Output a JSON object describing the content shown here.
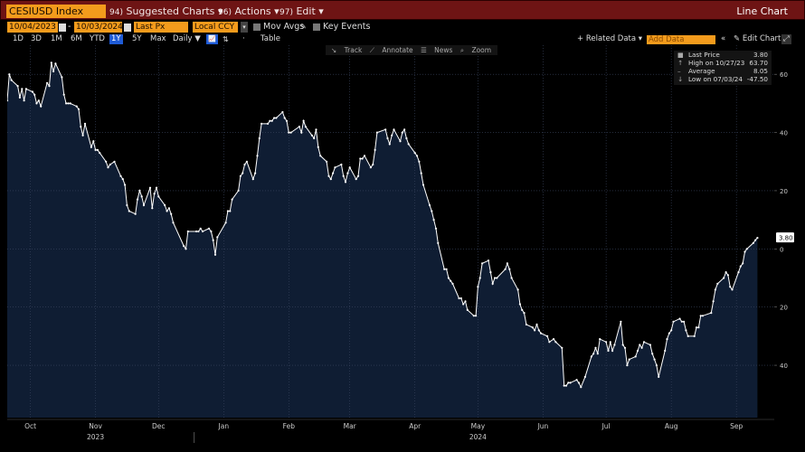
{
  "toolbar": {
    "ticker": "CESIUSD Index",
    "menus": [
      {
        "num": "94)",
        "label": "Suggested Charts",
        "arrow": "▾"
      },
      {
        "num": "96)",
        "label": "Actions",
        "arrow": "▾"
      },
      {
        "num": "97)",
        "label": "Edit",
        "arrow": "▾"
      }
    ],
    "chart_type": "Line Chart"
  },
  "params": {
    "start_date": "10/04/2023",
    "end_date": "10/03/2024",
    "field": "Last Px",
    "currency": "Local CCY",
    "mov_avgs": "Mov Avgs",
    "key_events": "Key Events"
  },
  "ranges": {
    "items": [
      "1D",
      "3D",
      "1M",
      "6M",
      "YTD",
      "1Y",
      "5Y",
      "Max"
    ],
    "selected": "1Y",
    "periodicity": "Daily ▼",
    "table": "Table",
    "related": "+ Related Data ▾",
    "add_data": "Add Data",
    "edit_chart": "Edit Chart"
  },
  "tools": [
    "Track",
    "Annotate",
    "News",
    "Zoom"
  ],
  "legend": [
    {
      "label": "Last Price",
      "value": "3.80"
    },
    {
      "label": "High on 10/27/23",
      "value": "63.70"
    },
    {
      "label": "Average",
      "value": "8.05"
    },
    {
      "label": "Low on 07/03/24",
      "value": "-47.50"
    }
  ],
  "colors": {
    "title_bar": "#6e1414",
    "input_fill": "#f39b1c",
    "area_fill": "#0f1d33",
    "line": "#ffffff",
    "selected_range": "#1f5bd6"
  },
  "chart_data": {
    "type": "area",
    "ylim": [
      -58,
      70
    ],
    "yticks": [
      60,
      40,
      20,
      0,
      -20,
      -40
    ],
    "ytick_labels": [
      "60",
      "40",
      "20",
      "0",
      "20",
      "40"
    ],
    "month_labels": [
      "Oct",
      "Nov",
      "Dec",
      "Jan",
      "Feb",
      "Mar",
      "Apr",
      "May",
      "Jun",
      "Jul",
      "Aug",
      "Sep"
    ],
    "month_dates": [
      "2023-10-15",
      "2023-11-15",
      "2023-12-15",
      "2024-01-15",
      "2024-02-15",
      "2024-03-15",
      "2024-04-15",
      "2024-05-15",
      "2024-06-15",
      "2024-07-15",
      "2024-08-15",
      "2024-09-15"
    ],
    "year_labels": [
      {
        "label": "2023",
        "date": "2023-11-15"
      },
      {
        "label": "2024",
        "date": "2024-05-15"
      }
    ],
    "last_value_label": "3.80",
    "series": [
      {
        "values": [
          [
            "2023-10-04",
            51
          ],
          [
            "2023-10-05",
            60
          ],
          [
            "2023-10-06",
            58
          ],
          [
            "2023-10-09",
            56
          ],
          [
            "2023-10-10",
            52
          ],
          [
            "2023-10-11",
            55
          ],
          [
            "2023-10-12",
            51
          ],
          [
            "2023-10-13",
            55
          ],
          [
            "2023-10-16",
            54
          ],
          [
            "2023-10-17",
            53
          ],
          [
            "2023-10-18",
            50
          ],
          [
            "2023-10-19",
            51
          ],
          [
            "2023-10-20",
            49
          ],
          [
            "2023-10-23",
            57
          ],
          [
            "2023-10-24",
            56
          ],
          [
            "2023-10-25",
            64
          ],
          [
            "2023-10-26",
            61
          ],
          [
            "2023-10-27",
            63.7
          ],
          [
            "2023-10-30",
            59
          ],
          [
            "2023-10-31",
            53
          ],
          [
            "2023-11-01",
            50
          ],
          [
            "2023-11-02",
            50
          ],
          [
            "2023-11-03",
            50
          ],
          [
            "2023-11-06",
            49
          ],
          [
            "2023-11-07",
            48
          ],
          [
            "2023-11-08",
            42
          ],
          [
            "2023-11-09",
            39
          ],
          [
            "2023-11-10",
            43
          ],
          [
            "2023-11-13",
            35
          ],
          [
            "2023-11-14",
            37
          ],
          [
            "2023-11-15",
            34
          ],
          [
            "2023-11-16",
            34
          ],
          [
            "2023-11-17",
            33
          ],
          [
            "2023-11-20",
            30
          ],
          [
            "2023-11-21",
            28
          ],
          [
            "2023-11-22",
            29
          ],
          [
            "2023-11-24",
            30
          ],
          [
            "2023-11-27",
            25
          ],
          [
            "2023-11-28",
            24
          ],
          [
            "2023-11-29",
            22
          ],
          [
            "2023-11-30",
            15
          ],
          [
            "2023-12-01",
            13
          ],
          [
            "2023-12-04",
            12
          ],
          [
            "2023-12-05",
            17
          ],
          [
            "2023-12-06",
            20
          ],
          [
            "2023-12-07",
            18
          ],
          [
            "2023-12-08",
            15
          ],
          [
            "2023-12-11",
            21
          ],
          [
            "2023-12-12",
            14
          ],
          [
            "2023-12-13",
            19
          ],
          [
            "2023-12-14",
            21
          ],
          [
            "2023-12-15",
            18
          ],
          [
            "2023-12-18",
            15
          ],
          [
            "2023-12-19",
            13
          ],
          [
            "2023-12-20",
            14
          ],
          [
            "2023-12-21",
            12
          ],
          [
            "2023-12-22",
            9
          ],
          [
            "2023-12-27",
            1
          ],
          [
            "2023-12-28",
            0
          ],
          [
            "2023-12-29",
            6
          ],
          [
            "2024-01-02",
            6
          ],
          [
            "2024-01-03",
            6
          ],
          [
            "2024-01-04",
            7
          ],
          [
            "2024-01-05",
            6
          ],
          [
            "2024-01-08",
            7
          ],
          [
            "2024-01-09",
            6
          ],
          [
            "2024-01-10",
            3
          ],
          [
            "2024-01-11",
            -2
          ],
          [
            "2024-01-12",
            4
          ],
          [
            "2024-01-16",
            9
          ],
          [
            "2024-01-17",
            13
          ],
          [
            "2024-01-18",
            13
          ],
          [
            "2024-01-19",
            17
          ],
          [
            "2024-01-22",
            20
          ],
          [
            "2024-01-23",
            25
          ],
          [
            "2024-01-24",
            26
          ],
          [
            "2024-01-25",
            29
          ],
          [
            "2024-01-26",
            30
          ],
          [
            "2024-01-29",
            24
          ],
          [
            "2024-01-30",
            26
          ],
          [
            "2024-01-31",
            32
          ],
          [
            "2024-02-01",
            38
          ],
          [
            "2024-02-02",
            43
          ],
          [
            "2024-02-05",
            43
          ],
          [
            "2024-02-06",
            44
          ],
          [
            "2024-02-07",
            44
          ],
          [
            "2024-02-08",
            45
          ],
          [
            "2024-02-09",
            45
          ],
          [
            "2024-02-12",
            47
          ],
          [
            "2024-02-13",
            45
          ],
          [
            "2024-02-14",
            44
          ],
          [
            "2024-02-15",
            40
          ],
          [
            "2024-02-16",
            40
          ],
          [
            "2024-02-20",
            42
          ],
          [
            "2024-02-21",
            40
          ],
          [
            "2024-02-22",
            44
          ],
          [
            "2024-02-23",
            42
          ],
          [
            "2024-02-26",
            39
          ],
          [
            "2024-02-27",
            38
          ],
          [
            "2024-02-28",
            41
          ],
          [
            "2024-02-29",
            35
          ],
          [
            "2024-03-01",
            32
          ],
          [
            "2024-03-04",
            30
          ],
          [
            "2024-03-05",
            25
          ],
          [
            "2024-03-06",
            24
          ],
          [
            "2024-03-07",
            26
          ],
          [
            "2024-03-08",
            28
          ],
          [
            "2024-03-11",
            29
          ],
          [
            "2024-03-12",
            25
          ],
          [
            "2024-03-13",
            23
          ],
          [
            "2024-03-14",
            26
          ],
          [
            "2024-03-15",
            28
          ],
          [
            "2024-03-18",
            24
          ],
          [
            "2024-03-19",
            25
          ],
          [
            "2024-03-20",
            31
          ],
          [
            "2024-03-21",
            31
          ],
          [
            "2024-03-22",
            32
          ],
          [
            "2024-03-25",
            28
          ],
          [
            "2024-03-26",
            29
          ],
          [
            "2024-03-27",
            34
          ],
          [
            "2024-03-28",
            40
          ],
          [
            "2024-04-01",
            41
          ],
          [
            "2024-04-02",
            38
          ],
          [
            "2024-04-03",
            36
          ],
          [
            "2024-04-04",
            39
          ],
          [
            "2024-04-05",
            41
          ],
          [
            "2024-04-08",
            37
          ],
          [
            "2024-04-09",
            40
          ],
          [
            "2024-04-10",
            41
          ],
          [
            "2024-04-11",
            38
          ],
          [
            "2024-04-12",
            36
          ],
          [
            "2024-04-15",
            33
          ],
          [
            "2024-04-16",
            32
          ],
          [
            "2024-04-17",
            30
          ],
          [
            "2024-04-18",
            26
          ],
          [
            "2024-04-19",
            22
          ],
          [
            "2024-04-22",
            15
          ],
          [
            "2024-04-23",
            13
          ],
          [
            "2024-04-24",
            10
          ],
          [
            "2024-04-25",
            7
          ],
          [
            "2024-04-26",
            2
          ],
          [
            "2024-04-29",
            -7
          ],
          [
            "2024-04-30",
            -7
          ],
          [
            "2024-05-01",
            -10
          ],
          [
            "2024-05-02",
            -11
          ],
          [
            "2024-05-03",
            -12
          ],
          [
            "2024-05-06",
            -17
          ],
          [
            "2024-05-07",
            -17
          ],
          [
            "2024-05-08",
            -19
          ],
          [
            "2024-05-09",
            -18
          ],
          [
            "2024-05-10",
            -21
          ],
          [
            "2024-05-13",
            -23
          ],
          [
            "2024-05-14",
            -23
          ],
          [
            "2024-05-15",
            -13
          ],
          [
            "2024-05-16",
            -10
          ],
          [
            "2024-05-17",
            -5
          ],
          [
            "2024-05-20",
            -4
          ],
          [
            "2024-05-21",
            -8
          ],
          [
            "2024-05-22",
            -12
          ],
          [
            "2024-05-23",
            -10
          ],
          [
            "2024-05-24",
            -10
          ],
          [
            "2024-05-28",
            -7
          ],
          [
            "2024-05-29",
            -5
          ],
          [
            "2024-05-30",
            -7
          ],
          [
            "2024-05-31",
            -10
          ],
          [
            "2024-06-03",
            -14
          ],
          [
            "2024-06-04",
            -19
          ],
          [
            "2024-06-05",
            -21
          ],
          [
            "2024-06-06",
            -22
          ],
          [
            "2024-06-07",
            -26
          ],
          [
            "2024-06-10",
            -27
          ],
          [
            "2024-06-11",
            -28
          ],
          [
            "2024-06-12",
            -26
          ],
          [
            "2024-06-13",
            -28
          ],
          [
            "2024-06-14",
            -29
          ],
          [
            "2024-06-17",
            -30
          ],
          [
            "2024-06-18",
            -32
          ],
          [
            "2024-06-20",
            -31
          ],
          [
            "2024-06-21",
            -32
          ],
          [
            "2024-06-24",
            -34
          ],
          [
            "2024-06-25",
            -47
          ],
          [
            "2024-06-26",
            -47
          ],
          [
            "2024-06-27",
            -46
          ],
          [
            "2024-06-28",
            -46
          ],
          [
            "2024-07-01",
            -45
          ],
          [
            "2024-07-02",
            -46
          ],
          [
            "2024-07-03",
            -47.5
          ],
          [
            "2024-07-05",
            -44
          ],
          [
            "2024-07-08",
            -37
          ],
          [
            "2024-07-09",
            -36
          ],
          [
            "2024-07-10",
            -34
          ],
          [
            "2024-07-11",
            -36
          ],
          [
            "2024-07-12",
            -31
          ],
          [
            "2024-07-15",
            -32
          ],
          [
            "2024-07-16",
            -35
          ],
          [
            "2024-07-17",
            -32
          ],
          [
            "2024-07-18",
            -35
          ],
          [
            "2024-07-19",
            -33
          ],
          [
            "2024-07-22",
            -25
          ],
          [
            "2024-07-23",
            -33
          ],
          [
            "2024-07-24",
            -34
          ],
          [
            "2024-07-25",
            -40
          ],
          [
            "2024-07-26",
            -38
          ],
          [
            "2024-07-29",
            -37
          ],
          [
            "2024-07-30",
            -35
          ],
          [
            "2024-07-31",
            -33
          ],
          [
            "2024-08-01",
            -34
          ],
          [
            "2024-08-02",
            -32
          ],
          [
            "2024-08-05",
            -33
          ],
          [
            "2024-08-06",
            -36
          ],
          [
            "2024-08-07",
            -38
          ],
          [
            "2024-08-08",
            -40
          ],
          [
            "2024-08-09",
            -44
          ],
          [
            "2024-08-12",
            -35
          ],
          [
            "2024-08-13",
            -31
          ],
          [
            "2024-08-14",
            -29
          ],
          [
            "2024-08-15",
            -28
          ],
          [
            "2024-08-16",
            -25
          ],
          [
            "2024-08-19",
            -24
          ],
          [
            "2024-08-20",
            -25
          ],
          [
            "2024-08-21",
            -25
          ],
          [
            "2024-08-22",
            -28
          ],
          [
            "2024-08-23",
            -30
          ],
          [
            "2024-08-26",
            -30
          ],
          [
            "2024-08-27",
            -27
          ],
          [
            "2024-08-28",
            -27
          ],
          [
            "2024-08-29",
            -23
          ],
          [
            "2024-08-30",
            -23
          ],
          [
            "2024-09-03",
            -22
          ],
          [
            "2024-09-04",
            -18
          ],
          [
            "2024-09-05",
            -14
          ],
          [
            "2024-09-06",
            -12
          ],
          [
            "2024-09-09",
            -10
          ],
          [
            "2024-09-10",
            -8
          ],
          [
            "2024-09-11",
            -9
          ],
          [
            "2024-09-12",
            -13
          ],
          [
            "2024-09-13",
            -14
          ],
          [
            "2024-09-16",
            -8
          ],
          [
            "2024-09-17",
            -6
          ],
          [
            "2024-09-18",
            -5
          ],
          [
            "2024-09-19",
            -1
          ],
          [
            "2024-09-20",
            0
          ],
          [
            "2024-09-23",
            2
          ],
          [
            "2024-09-24",
            3
          ],
          [
            "2024-09-25",
            3.8
          ]
        ]
      }
    ]
  }
}
